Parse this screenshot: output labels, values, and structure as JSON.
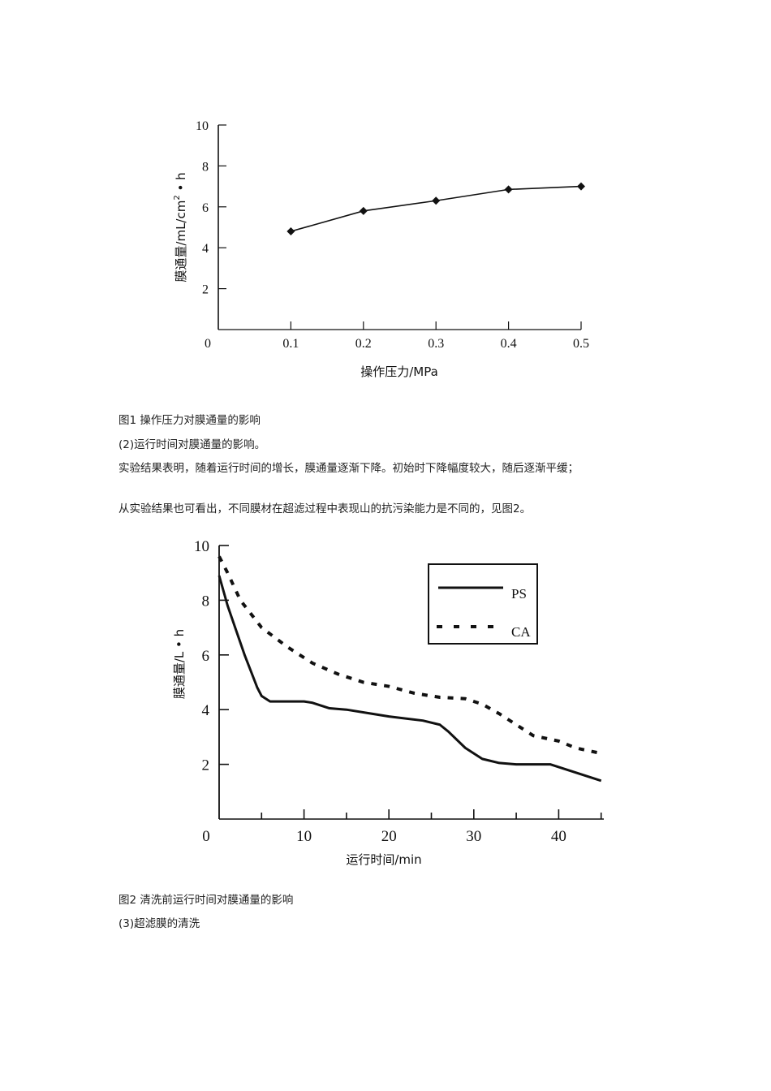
{
  "chart_data": [
    {
      "type": "line",
      "title": "图1 操作压力对膜通量的影响",
      "xlabel": "操作压力/MPa",
      "ylabel": "膜通量/mL/cm²·h",
      "ylabel_main": "膜通量/mL/cm",
      "ylabel_sup": "2",
      "ylabel_tail": " • h",
      "xlim": [
        0,
        0.5
      ],
      "ylim": [
        0,
        10
      ],
      "x_ticks": [
        "0",
        "0.1",
        "0.2",
        "0.3",
        "0.4",
        "0.5"
      ],
      "y_ticks": [
        "2",
        "4",
        "6",
        "8",
        "10"
      ],
      "marker": "diamond",
      "grid": false,
      "series": [
        {
          "name": "膜通量",
          "x": [
            0.1,
            0.2,
            0.3,
            0.4,
            0.5
          ],
          "values": [
            4.8,
            5.8,
            6.3,
            6.85,
            7.0
          ]
        }
      ]
    },
    {
      "type": "line",
      "title": "图2 清洗前运行时间对膜通量的影响",
      "xlabel": "运行时间/min",
      "ylabel": "膜通量/L • h",
      "xlim": [
        0,
        45
      ],
      "ylim": [
        0,
        10
      ],
      "x_ticks": [
        "0",
        "10",
        "20",
        "30",
        "40"
      ],
      "y_ticks": [
        "2",
        "4",
        "6",
        "8",
        "10"
      ],
      "grid": false,
      "legend_position": "upper right",
      "series": [
        {
          "name": "PS",
          "style": "solid",
          "x": [
            0,
            1,
            2,
            3,
            4,
            4.5,
            5,
            6,
            8,
            10,
            11,
            13,
            15,
            18,
            20,
            24,
            26,
            27,
            29,
            31,
            33,
            35,
            39,
            40,
            42,
            45
          ],
          "values": [
            8.9,
            7.8,
            6.9,
            6.0,
            5.2,
            4.8,
            4.5,
            4.3,
            4.3,
            4.3,
            4.25,
            4.05,
            4.0,
            3.85,
            3.75,
            3.6,
            3.45,
            3.2,
            2.6,
            2.2,
            2.05,
            2.0,
            2.0,
            1.9,
            1.7,
            1.4
          ]
        },
        {
          "name": "CA",
          "style": "dashed",
          "x": [
            0,
            1,
            2.5,
            5,
            8,
            11,
            14,
            17,
            20,
            23,
            26,
            29,
            31,
            33,
            35,
            37,
            40,
            42,
            45
          ],
          "values": [
            9.6,
            9.0,
            8.0,
            7.0,
            6.3,
            5.7,
            5.3,
            5.0,
            4.85,
            4.6,
            4.45,
            4.4,
            4.2,
            3.85,
            3.45,
            3.05,
            2.85,
            2.6,
            2.4
          ]
        }
      ]
    }
  ],
  "document": {
    "fig1_caption": "图1 操作压力对膜通量的影响",
    "section2_heading": "(2)运行时间对膜通量的影响。",
    "para1": "实验结果表明，随着运行时间的增长，膜通量逐渐下降。初始时下降幅度较大，随后逐渐平缓；",
    "para2": "从实验结果也可看出，不同膜材在超滤过程中表现山的抗污染能力是不同的，见图2。",
    "fig2_caption": "图2 清洗前运行时间对膜通量的影响",
    "section3_heading": "(3)超滤膜的清洗"
  },
  "legend": {
    "ps_label": "PS",
    "ca_label": "CA"
  }
}
